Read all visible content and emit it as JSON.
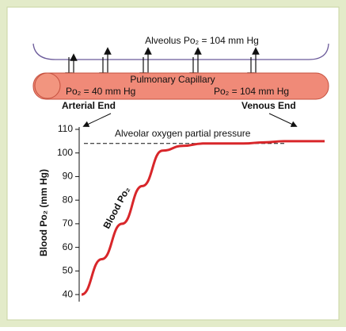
{
  "diagram": {
    "alveolus": "Alveolus Po₂ = 104 mm Hg",
    "capillary": "Pulmonary Capillary",
    "arterial_po2": "Po₂ = 40 mm Hg",
    "venous_po2": "Po₂ = 104 mm Hg",
    "arterial_end": "Arterial End",
    "venous_end": "Venous End"
  },
  "chart_data": {
    "type": "line",
    "ylabel": "Blood Po₂ (mm Hg)",
    "series_label": "Blood Po₂",
    "annotation": "Alveolar oxygen partial pressure",
    "reference": 104,
    "values": [
      40,
      55,
      70,
      86,
      101,
      103,
      104,
      104,
      104,
      104.5,
      105,
      105,
      105
    ],
    "color": "#d8262a",
    "ylim": [
      37,
      111
    ],
    "yticks": [
      40,
      50,
      60,
      70,
      80,
      90,
      100,
      110
    ]
  }
}
